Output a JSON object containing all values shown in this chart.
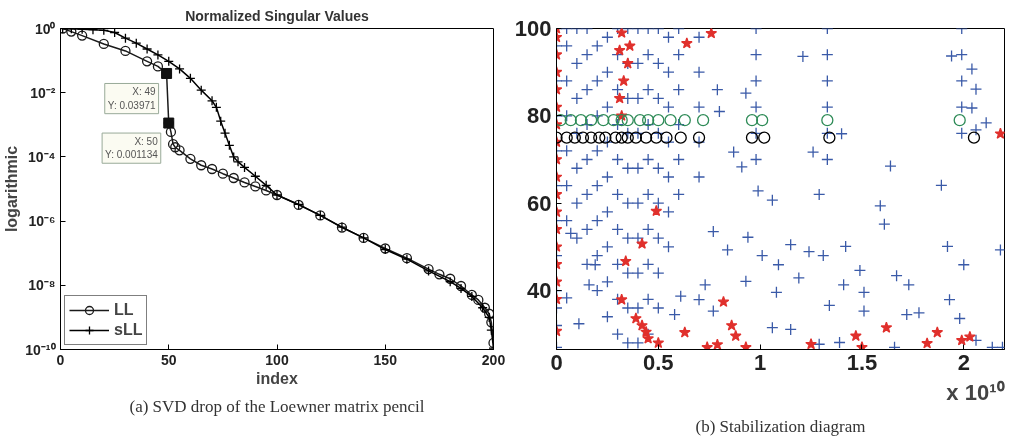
{
  "chart_data": [
    {
      "type": "line",
      "title": "Normalized Singular Values",
      "xlabel": "index",
      "ylabel": "logarithmic",
      "log": "y",
      "legend": "bottom left",
      "xlim": [
        0,
        200
      ],
      "xticks": [
        0,
        50,
        100,
        150,
        200
      ],
      "ylim": [
        1e-10,
        1
      ],
      "yticks": [
        {
          "value": 1,
          "label": "10⁰"
        },
        {
          "value": 0.01,
          "label": "10⁻²"
        },
        {
          "value": 0.0001,
          "label": "10⁻⁴"
        },
        {
          "value": 1e-06,
          "label": "10⁻⁶"
        },
        {
          "value": 1e-08,
          "label": "10⁻⁸"
        },
        {
          "value": 1e-10,
          "label": "10⁻¹⁰"
        }
      ],
      "series": [
        {
          "name": "LL",
          "color": "#1a1a1a",
          "marker": "circle",
          "x": [
            1,
            5,
            10,
            20,
            30,
            40,
            45,
            49,
            50,
            51,
            52,
            53,
            55,
            60,
            65,
            70,
            75,
            80,
            85,
            90,
            95,
            100,
            110,
            120,
            130,
            140,
            150,
            160,
            170,
            175,
            180,
            185,
            190,
            193,
            196,
            198,
            199,
            200
          ],
          "values": [
            1,
            0.8,
            0.6,
            0.33,
            0.2,
            0.095,
            0.066,
            0.03971,
            0.001134,
            0.0006,
            0.00025,
            0.0002,
            0.00016,
            8.7e-05,
            5.5e-05,
            4.2e-05,
            3e-05,
            2.2e-05,
            1.6e-05,
            1.2e-05,
            9e-06,
            6.5e-06,
            3.2e-06,
            1.5e-06,
            6.3e-07,
            3e-07,
            1.4e-07,
            7e-08,
            3.2e-08,
            2.2e-08,
            1.6e-08,
            9.5e-09,
            5e-09,
            3.5e-09,
            2e-09,
            1.3e-09,
            7e-10,
            1.6e-10
          ]
        },
        {
          "name": "sLL",
          "color": "#000000",
          "marker": "cross",
          "x": [
            1,
            5,
            10,
            15,
            20,
            25,
            30,
            35,
            40,
            45,
            50,
            55,
            60,
            65,
            70,
            72,
            74,
            76,
            78,
            80,
            82,
            85,
            90,
            95,
            100,
            110,
            120,
            130,
            140,
            150,
            160,
            170,
            180,
            185,
            190,
            195,
            198,
            199,
            200
          ],
          "values": [
            1,
            0.98,
            0.95,
            0.92,
            0.88,
            0.75,
            0.5,
            0.35,
            0.23,
            0.15,
            0.095,
            0.055,
            0.028,
            0.012,
            0.0056,
            0.0035,
            0.0013,
            0.00055,
            0.00023,
            0.0001,
            7e-05,
            4.7e-05,
            2.5e-05,
            1.3e-05,
            6.5e-06,
            3.3e-06,
            1.5e-06,
            6.5e-07,
            3e-07,
            1.3e-07,
            6.5e-08,
            2.8e-08,
            1.3e-08,
            8e-09,
            4.5e-09,
            2e-09,
            1e-09,
            4e-10,
            1.1e-10
          ]
        }
      ],
      "annotations": [
        {
          "text": "X: 49\nY: 0.03971",
          "x": 49,
          "y": 0.03971
        },
        {
          "text": "X: 50\nY: 0.001134",
          "x": 50,
          "y": 0.001134
        },
        "(a) SVD drop of the Loewner matrix pencil"
      ]
    },
    {
      "type": "scatter",
      "xlabel": "x 10¹⁰",
      "xlim": [
        0,
        2.2
      ],
      "xticks": [
        0,
        0.5,
        1,
        1.5,
        2
      ],
      "ylim": [
        26.5,
        100
      ],
      "yticks": [
        40,
        60,
        80,
        100
      ],
      "series": [
        {
          "color": "#3a5aa8",
          "marker": "cross",
          "x": [
            0,
            0,
            0,
            0,
            0,
            0,
            0,
            0,
            0,
            0,
            0,
            0,
            0.05,
            0.05,
            0.05,
            0.05,
            0.05,
            0.05,
            0.05,
            0.1,
            0.1,
            0.1,
            0.1,
            0.1,
            0.1,
            0.1,
            0.15,
            0.15,
            0.15,
            0.15,
            0.15,
            0.15,
            0.15,
            0.15,
            0.2,
            0.2,
            0.2,
            0.2,
            0.2,
            0.2,
            0.2,
            0.2,
            0.25,
            0.25,
            0.25,
            0.25,
            0.25,
            0.25,
            0.25,
            0.25,
            0.25,
            0.3,
            0.3,
            0.3,
            0.3,
            0.3,
            0.3,
            0.3,
            0.3,
            0.3,
            0.3,
            0.35,
            0.35,
            0.35,
            0.35,
            0.35,
            0.35,
            0.35,
            0.35,
            0.35,
            0.35,
            0.4,
            0.4,
            0.4,
            0.4,
            0.4,
            0.4,
            0.4,
            0.4,
            0.4,
            0.4,
            0.45,
            0.45,
            0.45,
            0.45,
            0.45,
            0.45,
            0.45,
            0.45,
            0.45,
            0.45,
            0.5,
            0.5,
            0.5,
            0.5,
            0.5,
            0.5,
            0.5,
            0.5,
            0.5,
            0.55,
            0.55,
            0.55,
            0.55,
            0.55,
            0.55,
            0.55,
            0.6,
            0.6,
            0.6,
            0.6,
            0.6,
            0.6,
            0.7,
            0.7,
            0.7,
            0.7,
            0.7,
            0.98,
            0.98,
            0.98,
            0.98,
            0.98,
            0.98,
            1.33,
            1.33,
            1.33,
            1.33,
            1.33,
            1.33,
            1.99,
            1.99,
            1.99,
            1.99,
            1.99,
            1.21,
            1.64,
            1.89,
            1.29,
            1.59,
            1.61,
            1.92,
            2.0,
            2.18,
            1.42,
            1.49,
            1.15,
            1.01,
            1.09,
            0.84,
            0.77,
            0.94,
            1.24,
            1.31,
            1.67,
            1.73,
            1.93,
            1.78,
            1.34,
            1.41,
            1.51,
            1.51,
            1.08,
            1.19,
            0.93,
            0.73,
            0.7,
            0.61,
            0.58,
            0.77,
            1.15,
            1.06,
            1.29,
            1.39,
            1.66,
            2.14,
            2.19,
            1.98,
            1.72,
            2.06,
            0.11,
            0.05,
            0.07,
            0.16,
            0.19,
            0.79,
            0.8,
            0.93,
            0.87,
            0.91,
            0.99,
            1.06,
            1.26,
            1.4,
            2.06,
            2.11,
            2.04,
            2.06,
            1.94,
            2.04
          ],
          "values": [
            27,
            32,
            36,
            40,
            48,
            56,
            64,
            72,
            80,
            88,
            96,
            100,
            56,
            64,
            72,
            80,
            88,
            96,
            100,
            52,
            60,
            68,
            76,
            84,
            92,
            100,
            46,
            54,
            62,
            70,
            78,
            86,
            94,
            100,
            40,
            48,
            56,
            64,
            72,
            80,
            88,
            96,
            34,
            42,
            50,
            58,
            66,
            74,
            82,
            90,
            98,
            30,
            38,
            46,
            54,
            62,
            70,
            78,
            86,
            94,
            100,
            28,
            36,
            44,
            52,
            60,
            68,
            76,
            84,
            92,
            100,
            28,
            36,
            44,
            52,
            60,
            68,
            76,
            84,
            92,
            100,
            30,
            38,
            46,
            54,
            62,
            70,
            78,
            86,
            94,
            100,
            36,
            44,
            52,
            60,
            68,
            76,
            84,
            92,
            100,
            50,
            58,
            66,
            74,
            82,
            90,
            98,
            62,
            70,
            78,
            86,
            94,
            100,
            66,
            74,
            82,
            90,
            98,
            70,
            76,
            82,
            88,
            94,
            100,
            70,
            76,
            82,
            88,
            94,
            100,
            76,
            82,
            88,
            94,
            100,
            93.6,
            68.5,
            64.1,
            62,
            59.4,
            55.2,
            50.1,
            45.9,
            49.3,
            50.1,
            44.6,
            50.5,
            48,
            45.9,
            49.3,
            53.5,
            52.2,
            48.9,
            48,
            43.4,
            41.3,
            37.9,
            34.9,
            36.6,
            41.3,
            39.6,
            35.3,
            39.6,
            42.9,
            42.1,
            41.3,
            37.9,
            38.7,
            34.5,
            35.3,
            31.1,
            31.5,
            27.7,
            28.1,
            27,
            27,
            27,
            33.6,
            34.5,
            28.6,
            32.4,
            38.3,
            53.1,
            41.3,
            45.9,
            86,
            81,
            85.2,
            71.7,
            68.3,
            62.8,
            60.7,
            71.7,
            75.9,
            76.8,
            78.4,
            81.8,
            86.1,
            93.7,
            90.7
          ]
        },
        {
          "color": "#e0302c",
          "marker": "star",
          "x": [
            0,
            0,
            0,
            0,
            0,
            0,
            0,
            0,
            0,
            0,
            0,
            0,
            0,
            0,
            0,
            0,
            0,
            0,
            0.32,
            0.31,
            0.33,
            0.35,
            0.36,
            0.32,
            0.31,
            0.64,
            0.76,
            2.18,
            0.49,
            0.42,
            0.34,
            0.32,
            0.39,
            0.42,
            0.44,
            0.45,
            0.5,
            0.63,
            0.74,
            0.79,
            0.82,
            0.86,
            0.88,
            0.93,
            1.25,
            1.47,
            1.5,
            1.62,
            1.82,
            1.87,
            1.99,
            2.03
          ],
          "values": [
            30.7,
            38,
            42,
            46,
            50,
            54,
            58,
            62,
            66,
            70,
            74,
            78,
            82,
            86,
            90,
            94,
            98,
            100,
            80,
            84,
            88,
            92,
            96,
            99,
            95,
            96.6,
            98.9,
            75.9,
            58.2,
            50.7,
            46.7,
            37.9,
            33.6,
            32,
            30.5,
            29,
            28,
            30.4,
            27,
            27.6,
            37.4,
            32,
            29.6,
            27,
            27.7,
            29.6,
            27,
            31.5,
            27.9,
            30.4,
            28.6,
            29.4
          ]
        },
        {
          "color": "#2e8b57",
          "marker": "circle",
          "x": [
            0.02,
            0.07,
            0.12,
            0.17,
            0.23,
            0.28,
            0.32,
            0.35,
            0.41,
            0.45,
            0.5,
            0.56,
            0.63,
            0.72,
            0.96,
            1.01,
            1.33,
            1.98
          ],
          "values": [
            79,
            79,
            79,
            79,
            79,
            79,
            79,
            79,
            79,
            79,
            79,
            79,
            79,
            79,
            79,
            79,
            79,
            79
          ]
        },
        {
          "color": "#000000",
          "marker": "circle",
          "x": [
            0.0,
            0.05,
            0.09,
            0.13,
            0.17,
            0.21,
            0.24,
            0.29,
            0.32,
            0.35,
            0.39,
            0.44,
            0.49,
            0.54,
            0.61,
            0.7,
            0.96,
            1.02,
            1.34,
            2.05
          ],
          "values": [
            75,
            75,
            75,
            75,
            75,
            75,
            75,
            75,
            75,
            75,
            75,
            75,
            75,
            75,
            75,
            75,
            75,
            75,
            75,
            75
          ]
        }
      ],
      "annotations": [
        "(b) Stabilization diagram"
      ]
    }
  ]
}
